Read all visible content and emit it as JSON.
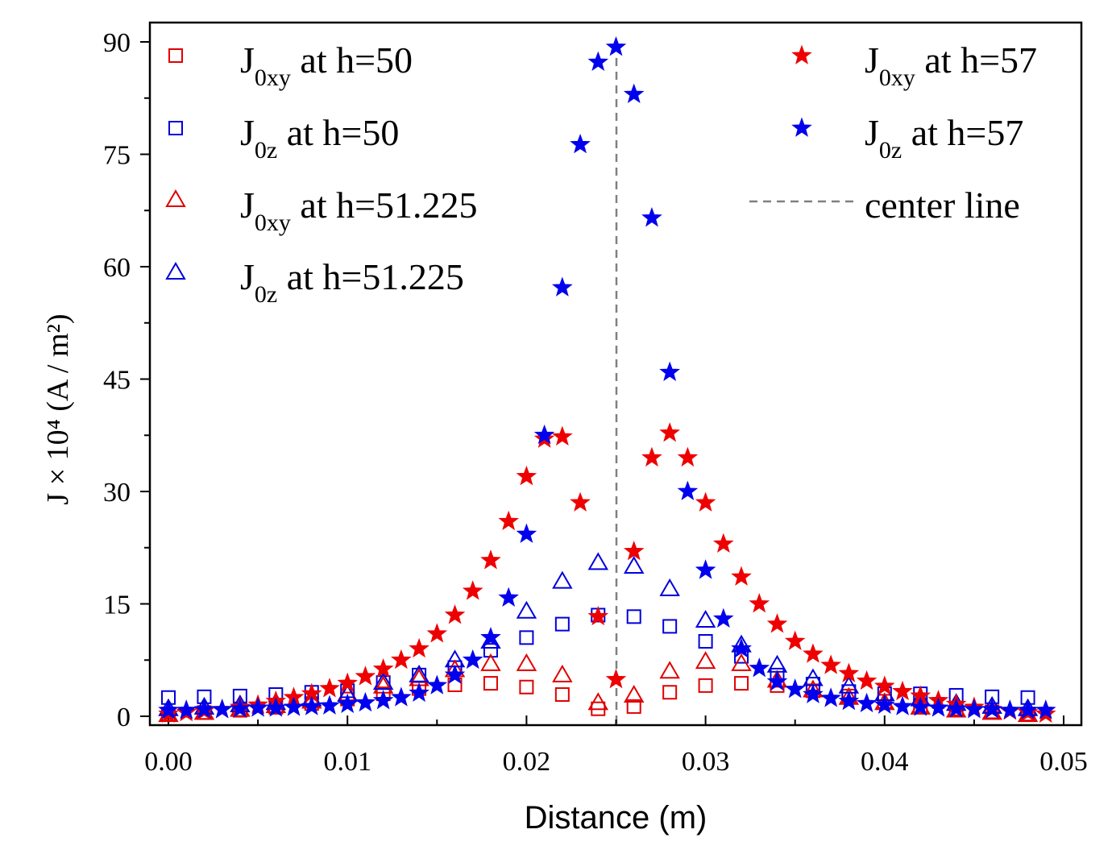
{
  "chart_data": {
    "type": "scatter",
    "xlabel": "Distance (m)",
    "ylabel": "J × 10⁴ (A / m²)",
    "xlim": [
      0,
      0.05
    ],
    "ylim": [
      0,
      90
    ],
    "xticks": [
      0.0,
      0.01,
      0.02,
      0.03,
      0.04,
      0.05
    ],
    "xtick_labels": [
      "0.00",
      "0.01",
      "0.02",
      "0.03",
      "0.04",
      "0.05"
    ],
    "yticks": [
      0,
      15,
      30,
      45,
      60,
      75,
      90
    ],
    "ytick_labels": [
      "0",
      "15",
      "30",
      "45",
      "60",
      "75",
      "90"
    ],
    "grid": false,
    "legend_placement": "top, two columns",
    "center_line": {
      "x": 0.025,
      "label": "center line",
      "color": "#808080"
    },
    "series": [
      {
        "name": "J0xy at h=50",
        "legend": {
          "main": "J",
          "sub": "0xy",
          "suffix": " at h=50"
        },
        "marker": "open-square",
        "color": "#e00000",
        "x": [
          0.0,
          0.002,
          0.004,
          0.006,
          0.008,
          0.01,
          0.012,
          0.014,
          0.016,
          0.018,
          0.02,
          0.022,
          0.024,
          0.026,
          0.028,
          0.03,
          0.032,
          0.034,
          0.036,
          0.038,
          0.04,
          0.042,
          0.044,
          0.046,
          0.048
        ],
        "y": [
          0.3,
          0.5,
          0.8,
          1.2,
          1.7,
          2.3,
          3.0,
          3.7,
          4.2,
          4.4,
          3.9,
          2.9,
          1.0,
          1.3,
          3.2,
          4.1,
          4.4,
          4.1,
          3.4,
          2.7,
          2.0,
          1.4,
          1.0,
          0.6,
          0.3
        ]
      },
      {
        "name": "J0z at h=50",
        "legend": {
          "main": "J",
          "sub": "0z",
          "suffix": " at h=50"
        },
        "marker": "open-square",
        "color": "#0000dd",
        "x": [
          0.0,
          0.002,
          0.004,
          0.006,
          0.008,
          0.01,
          0.012,
          0.014,
          0.016,
          0.018,
          0.02,
          0.022,
          0.024,
          0.026,
          0.028,
          0.03,
          0.032,
          0.034,
          0.036,
          0.038,
          0.04,
          0.042,
          0.044,
          0.046,
          0.048
        ],
        "y": [
          2.5,
          2.6,
          2.7,
          2.9,
          3.2,
          3.4,
          4.5,
          5.5,
          6.5,
          8.8,
          10.5,
          12.3,
          13.5,
          13.3,
          12.0,
          10.0,
          8.0,
          5.5,
          4.3,
          3.3,
          3.0,
          3.0,
          2.8,
          2.6,
          2.5
        ]
      },
      {
        "name": "J0xy at h=51.225",
        "legend": {
          "main": "J",
          "sub": "0xy",
          "suffix": " at h=51.225"
        },
        "marker": "open-triangle",
        "color": "#e00000",
        "x": [
          0.0,
          0.002,
          0.004,
          0.006,
          0.008,
          0.01,
          0.012,
          0.014,
          0.016,
          0.018,
          0.02,
          0.022,
          0.024,
          0.026,
          0.028,
          0.03,
          0.032,
          0.034,
          0.036,
          0.038,
          0.04,
          0.042,
          0.044,
          0.046,
          0.048
        ],
        "y": [
          0.2,
          0.5,
          0.9,
          1.4,
          2.0,
          3.0,
          4.0,
          5.0,
          6.2,
          7.0,
          7.0,
          5.5,
          1.8,
          2.8,
          6.0,
          7.3,
          7.0,
          4.8,
          3.5,
          2.5,
          1.8,
          1.2,
          0.8,
          0.5,
          0.2
        ]
      },
      {
        "name": "J0z at h=51.225",
        "legend": {
          "main": "J",
          "sub": "0z",
          "suffix": " at h=51.225"
        },
        "marker": "open-triangle",
        "color": "#0000dd",
        "x": [
          0.0,
          0.002,
          0.004,
          0.006,
          0.008,
          0.01,
          0.012,
          0.014,
          0.016,
          0.018,
          0.02,
          0.022,
          0.024,
          0.026,
          0.028,
          0.03,
          0.032,
          0.034,
          0.036,
          0.038,
          0.04,
          0.042,
          0.044,
          0.046,
          0.048
        ],
        "y": [
          1.0,
          1.2,
          1.5,
          1.8,
          2.3,
          2.9,
          4.5,
          5.5,
          7.5,
          10.0,
          14.0,
          18.0,
          20.5,
          20.0,
          17.0,
          12.8,
          9.5,
          6.8,
          5.0,
          4.0,
          3.0,
          2.3,
          1.7,
          1.3,
          1.0
        ]
      },
      {
        "name": "J0xy at h=57",
        "legend": {
          "main": "J",
          "sub": "0xy",
          "suffix": " at h=57"
        },
        "marker": "filled-star",
        "color": "#ee0000",
        "x": [
          0.0,
          0.001,
          0.002,
          0.003,
          0.004,
          0.005,
          0.006,
          0.007,
          0.008,
          0.009,
          0.01,
          0.011,
          0.012,
          0.013,
          0.014,
          0.015,
          0.016,
          0.017,
          0.018,
          0.019,
          0.02,
          0.021,
          0.022,
          0.023,
          0.024,
          0.025,
          0.026,
          0.027,
          0.028,
          0.029,
          0.03,
          0.031,
          0.032,
          0.033,
          0.034,
          0.035,
          0.036,
          0.037,
          0.038,
          0.039,
          0.04,
          0.041,
          0.042,
          0.043,
          0.044,
          0.045,
          0.046,
          0.047,
          0.048,
          0.049
        ],
        "y": [
          0.3,
          0.5,
          0.7,
          0.9,
          1.2,
          1.5,
          2.0,
          2.5,
          3.0,
          3.7,
          4.4,
          5.3,
          6.3,
          7.5,
          9.0,
          11.0,
          13.5,
          16.7,
          20.8,
          26.0,
          32.0,
          37.0,
          37.3,
          28.5,
          13.3,
          4.9,
          22.0,
          34.5,
          37.8,
          34.5,
          28.5,
          23.0,
          18.6,
          15.0,
          12.3,
          10.0,
          8.3,
          6.8,
          5.7,
          4.7,
          4.0,
          3.3,
          2.7,
          2.1,
          1.6,
          1.2,
          0.9,
          0.7,
          0.5,
          0.3
        ]
      },
      {
        "name": "J0z at h=57",
        "legend": {
          "main": "J",
          "sub": "0z",
          "suffix": " at h=57"
        },
        "marker": "filled-star",
        "color": "#0000ee",
        "x": [
          0.0,
          0.001,
          0.002,
          0.003,
          0.004,
          0.005,
          0.006,
          0.007,
          0.008,
          0.009,
          0.01,
          0.011,
          0.012,
          0.013,
          0.014,
          0.015,
          0.016,
          0.017,
          0.018,
          0.019,
          0.02,
          0.021,
          0.022,
          0.023,
          0.024,
          0.025,
          0.026,
          0.027,
          0.028,
          0.029,
          0.03,
          0.031,
          0.032,
          0.033,
          0.034,
          0.035,
          0.036,
          0.037,
          0.038,
          0.039,
          0.04,
          0.041,
          0.042,
          0.043,
          0.044,
          0.045,
          0.046,
          0.047,
          0.048,
          0.049
        ],
        "y": [
          0.8,
          0.8,
          0.9,
          0.9,
          1.0,
          1.1,
          1.1,
          1.2,
          1.3,
          1.4,
          1.6,
          1.8,
          2.1,
          2.5,
          3.1,
          4.1,
          5.5,
          7.5,
          10.5,
          15.8,
          24.3,
          37.5,
          57.2,
          76.3,
          87.3,
          89.3,
          83.0,
          66.5,
          45.9,
          30.0,
          19.5,
          13.0,
          9.0,
          6.4,
          4.6,
          3.6,
          2.9,
          2.4,
          2.0,
          1.7,
          1.5,
          1.3,
          1.2,
          1.1,
          1.0,
          0.9,
          0.9,
          0.8,
          0.8,
          0.8
        ]
      }
    ]
  }
}
